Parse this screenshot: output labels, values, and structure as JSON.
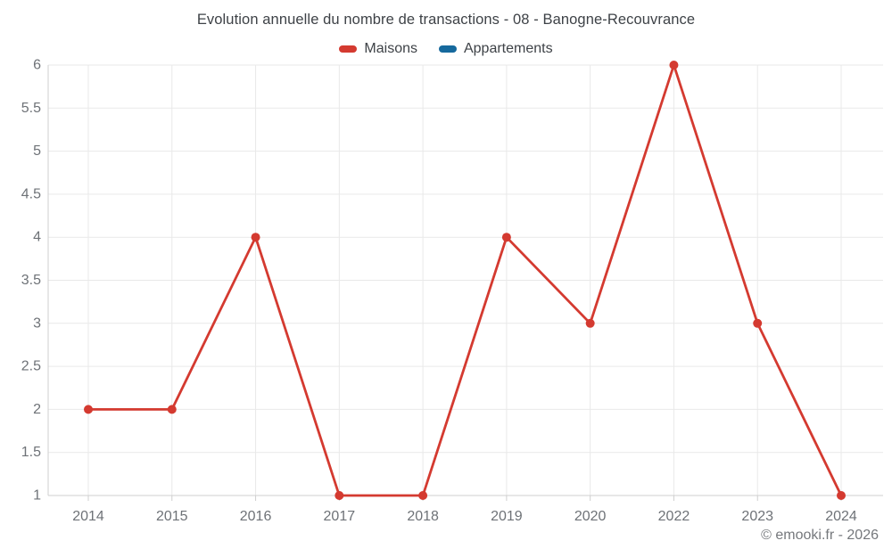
{
  "title": "Evolution annuelle du nombre de transactions - 08 - Banogne-Recouvrance",
  "legend": {
    "items": [
      {
        "label": "Maisons",
        "color": "#d43a30"
      },
      {
        "label": "Appartements",
        "color": "#16699d"
      }
    ]
  },
  "footer": "© emooki.fr - 2026",
  "colors": {
    "maisons": "#d43a30",
    "appartements": "#16699d",
    "grid": "#e9e9e9",
    "axis": "#cfcfcf",
    "tick_label": "#6e7277",
    "title_text": "#3e4247",
    "footer_text": "#75787c"
  },
  "chart_data": {
    "type": "line",
    "title": "Evolution annuelle du nombre de transactions - 08 - Banogne-Recouvrance",
    "xlabel": "",
    "ylabel": "",
    "categories": [
      "2014",
      "2015",
      "2016",
      "2017",
      "2018",
      "2019",
      "2020",
      "2022",
      "2023",
      "2024"
    ],
    "series": [
      {
        "name": "Maisons",
        "color": "#d43a30",
        "values": [
          2,
          2,
          4,
          1,
          1,
          4,
          3,
          6,
          3,
          1
        ]
      },
      {
        "name": "Appartements",
        "color": "#16699d",
        "values": []
      }
    ],
    "ylim": [
      1,
      6
    ],
    "ytick_step": 0.5,
    "grid": true,
    "legend_position": "top",
    "marker_radius": 5
  }
}
